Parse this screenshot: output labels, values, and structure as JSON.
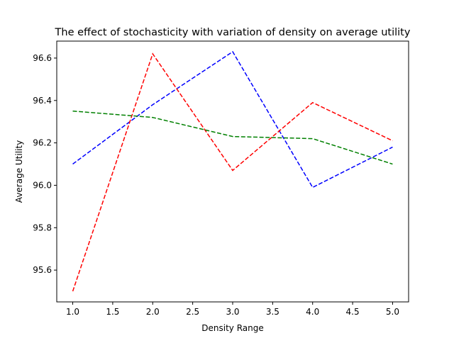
{
  "chart_data": {
    "type": "line",
    "title": "The effect of stochasticity with variation of density on average utility",
    "xlabel": "Density Range",
    "ylabel": "Average Utility",
    "x": [
      1.0,
      2.0,
      3.0,
      4.0,
      5.0
    ],
    "xlim": [
      0.8,
      5.2
    ],
    "ylim": [
      95.45,
      96.68
    ],
    "xticks": [
      1.0,
      1.5,
      2.0,
      2.5,
      3.0,
      3.5,
      4.0,
      4.5,
      5.0
    ],
    "xtick_labels": [
      "1.0",
      "1.5",
      "2.0",
      "2.5",
      "3.0",
      "3.5",
      "4.0",
      "4.5",
      "5.0"
    ],
    "yticks": [
      95.6,
      95.8,
      96.0,
      96.2,
      96.4,
      96.6
    ],
    "ytick_labels": [
      "95.6",
      "95.8",
      "96.0",
      "96.2",
      "96.4",
      "96.6"
    ],
    "grid": false,
    "legend": false,
    "series": [
      {
        "color": "#0000ff",
        "linestyle": "dashed",
        "values": [
          96.1,
          96.38,
          96.63,
          95.99,
          96.18
        ]
      },
      {
        "color": "#ff0000",
        "linestyle": "dashed",
        "values": [
          95.5,
          96.62,
          96.07,
          96.39,
          96.21
        ]
      },
      {
        "color": "#008000",
        "linestyle": "dashed",
        "values": [
          96.35,
          96.32,
          96.23,
          96.22,
          96.1
        ]
      }
    ]
  }
}
